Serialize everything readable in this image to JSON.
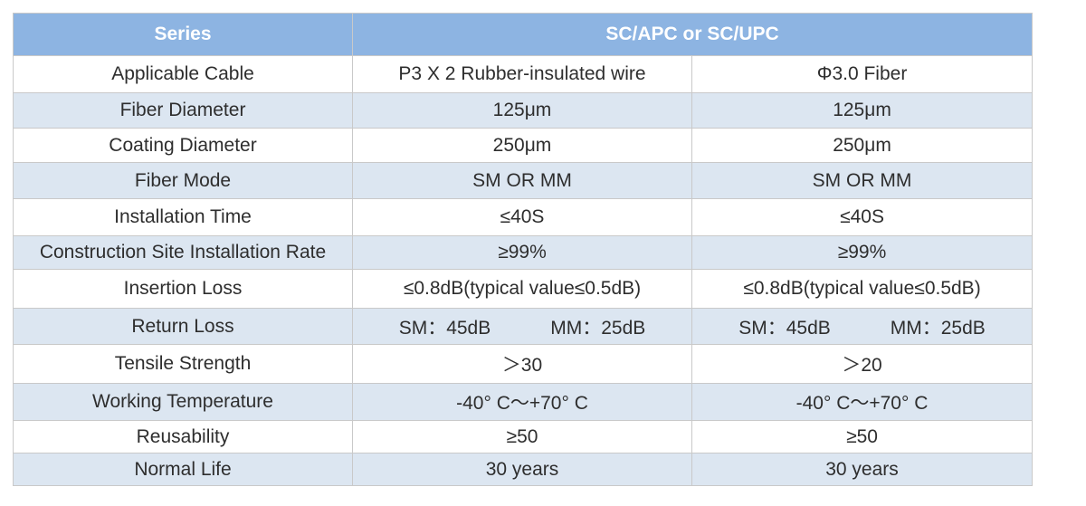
{
  "table": {
    "header": {
      "series_label": "Series",
      "product_label": "SC/APC or SC/UPC"
    },
    "rows": [
      {
        "label": "Applicable Cable",
        "a": "P3 X 2 Rubber-insulated wire",
        "b": "Φ3.0 Fiber"
      },
      {
        "label": "Fiber Diameter",
        "a": "125μm",
        "b": "125μm"
      },
      {
        "label": "Coating Diameter",
        "a": "250μm",
        "b": "250μm"
      },
      {
        "label": "Fiber Mode",
        "a": "SM OR MM",
        "b": "SM OR MM"
      },
      {
        "label": "Installation Time",
        "a": "≤40S",
        "b": "≤40S"
      },
      {
        "label": "Construction Site Installation Rate",
        "a": "≥99%",
        "b": "≥99%"
      },
      {
        "label": "Insertion Loss",
        "a": "≤0.8dB(typical value≤0.5dB)",
        "b": "≤0.8dB(typical value≤0.5dB)"
      },
      {
        "label": "Return Loss",
        "a_sm": "SM：45dB",
        "a_mm": "MM：25dB",
        "b_sm": "SM：45dB",
        "b_mm": "MM：25dB"
      },
      {
        "label": "Tensile Strength",
        "a": "＞30",
        "b": "＞20"
      },
      {
        "label": "Working Temperature",
        "a": "-40° C～+70° C",
        "b": "-40° C～+70° C"
      },
      {
        "label": "Reusability",
        "a": "≥50",
        "b": "≥50"
      },
      {
        "label": "Normal Life",
        "a": "30 years",
        "b": "30 years"
      }
    ]
  },
  "colors": {
    "header_bg": "#8db4e2",
    "header_text": "#ffffff",
    "alt_row_bg": "#dce6f1",
    "plain_row_bg": "#ffffff",
    "border": "#c9c9c9"
  }
}
